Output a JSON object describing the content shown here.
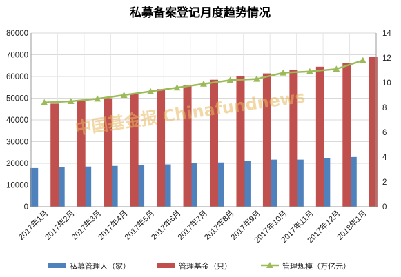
{
  "chart_data": {
    "type": "bar",
    "title": "私募备案登记月度趋势情况",
    "categories": [
      "2017年1月",
      "2017年2月",
      "2017年3月",
      "2017年4月",
      "2017年5月",
      "2017年6月",
      "2017年7月",
      "2017年8月",
      "2017年9月",
      "2017年10月",
      "2017年11月",
      "2017年12月",
      "2018年1月"
    ],
    "ylim_left": [
      0,
      80000
    ],
    "ylim_right": [
      0,
      14
    ],
    "yticks_left": [
      "0",
      "10000",
      "20000",
      "30000",
      "40000",
      "50000",
      "60000",
      "70000",
      "80000"
    ],
    "yticks_right": [
      "0",
      "2",
      "4",
      "6",
      "8",
      "10",
      "12",
      "14"
    ],
    "grid": true,
    "legend_position": "bottom",
    "series": [
      {
        "name": "私募管理人（家）",
        "kind": "bar",
        "axis": "left",
        "color": "#4f81bd",
        "values": [
          17800,
          18200,
          18500,
          18800,
          19100,
          19500,
          20000,
          20400,
          21000,
          21700,
          21700,
          22300,
          22900
        ]
      },
      {
        "name": "管理基金（只）",
        "kind": "bar",
        "axis": "left",
        "color": "#c0504d",
        "values": [
          47500,
          48800,
          50000,
          52000,
          54200,
          56200,
          58500,
          60300,
          61400,
          63000,
          64500,
          66200,
          69000
        ]
      },
      {
        "name": "管理规模（万亿元）",
        "kind": "line",
        "axis": "right",
        "color": "#9bbb59",
        "values": [
          8.4,
          8.5,
          8.7,
          9.0,
          9.3,
          9.6,
          9.9,
          10.2,
          10.3,
          10.8,
          10.9,
          11.1,
          11.8
        ]
      }
    ],
    "watermark": "中国基金报 Chinafundnews"
  }
}
